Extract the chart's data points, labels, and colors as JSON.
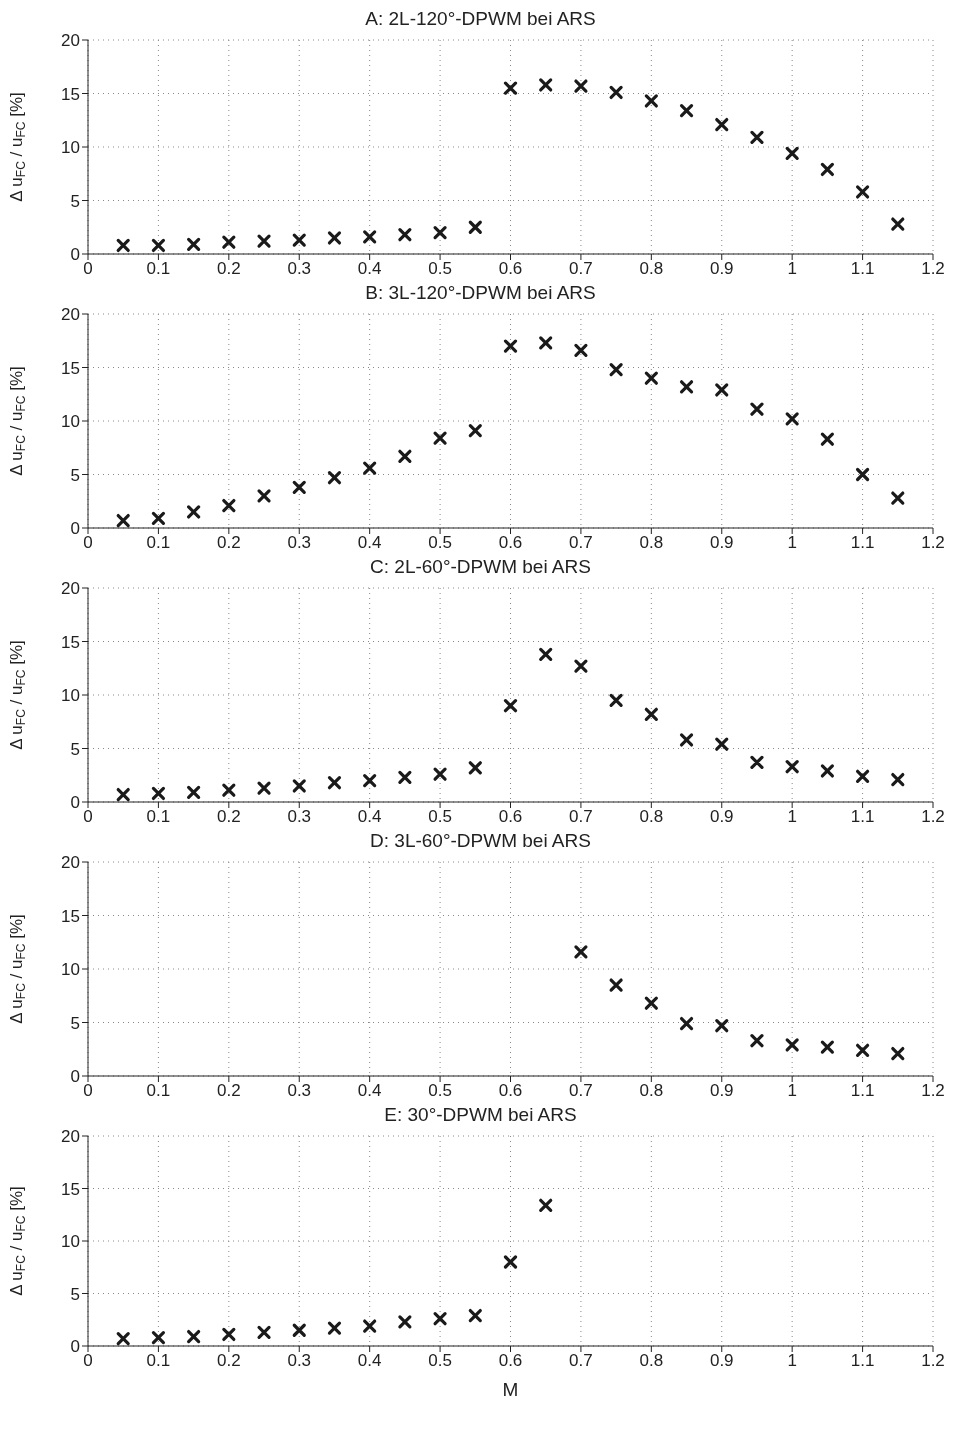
{
  "chart_data": [
    {
      "type": "scatter",
      "title": "A: 2L-120°-DPWM bei ARS",
      "ylabel": "Δ u$_{FC}$ / u$_{FC}$ [%]",
      "color": "#1a1a1a",
      "marker": "cross",
      "grid": true,
      "xlim": [
        0,
        1.2
      ],
      "xticks": [
        0,
        0.1,
        0.2,
        0.3,
        0.4,
        0.5,
        0.6,
        0.7,
        0.8,
        0.9,
        1,
        1.1,
        1.2
      ],
      "ylim": [
        0,
        20
      ],
      "yticks": [
        0,
        5,
        10,
        15,
        20
      ],
      "x": [
        0.05,
        0.1,
        0.15,
        0.2,
        0.25,
        0.3,
        0.35,
        0.4,
        0.45,
        0.5,
        0.55,
        0.6,
        0.65,
        0.7,
        0.75,
        0.8,
        0.85,
        0.9,
        0.95,
        1,
        1.05,
        1.1,
        1.15
      ],
      "values": [
        0.8,
        0.8,
        0.9,
        1.1,
        1.2,
        1.3,
        1.5,
        1.6,
        1.8,
        2.0,
        2.5,
        15.5,
        15.8,
        15.7,
        15.1,
        14.3,
        13.4,
        12.1,
        10.9,
        9.4,
        7.9,
        5.8,
        2.8
      ]
    },
    {
      "type": "scatter",
      "title": "B: 3L-120°-DPWM bei ARS",
      "ylabel": "Δ u$_{FC}$ / u$_{FC}$ [%]",
      "color": "#1a1a1a",
      "marker": "cross",
      "grid": true,
      "xlim": [
        0,
        1.2
      ],
      "xticks": [
        0,
        0.1,
        0.2,
        0.3,
        0.4,
        0.5,
        0.6,
        0.7,
        0.8,
        0.9,
        1,
        1.1,
        1.2
      ],
      "ylim": [
        0,
        20
      ],
      "yticks": [
        0,
        5,
        10,
        15,
        20
      ],
      "x": [
        0.05,
        0.1,
        0.15,
        0.2,
        0.25,
        0.3,
        0.35,
        0.4,
        0.45,
        0.5,
        0.55,
        0.6,
        0.65,
        0.7,
        0.75,
        0.8,
        0.85,
        0.9,
        0.95,
        1,
        1.05,
        1.1,
        1.15
      ],
      "values": [
        0.7,
        0.9,
        1.5,
        2.1,
        3.0,
        3.8,
        4.7,
        5.6,
        6.7,
        8.4,
        9.1,
        17.0,
        17.3,
        16.6,
        14.8,
        14.0,
        13.2,
        12.9,
        11.1,
        10.2,
        8.3,
        5.0,
        2.8
      ]
    },
    {
      "type": "scatter",
      "title": "C: 2L-60°-DPWM bei ARS",
      "ylabel": "Δ u$_{FC}$ / u$_{FC}$ [%]",
      "color": "#1a1a1a",
      "marker": "cross",
      "grid": true,
      "xlim": [
        0,
        1.2
      ],
      "xticks": [
        0,
        0.1,
        0.2,
        0.3,
        0.4,
        0.5,
        0.6,
        0.7,
        0.8,
        0.9,
        1,
        1.1,
        1.2
      ],
      "ylim": [
        0,
        20
      ],
      "yticks": [
        0,
        5,
        10,
        15,
        20
      ],
      "x": [
        0.05,
        0.1,
        0.15,
        0.2,
        0.25,
        0.3,
        0.35,
        0.4,
        0.45,
        0.5,
        0.55,
        0.6,
        0.65,
        0.7,
        0.75,
        0.8,
        0.85,
        0.9,
        0.95,
        1,
        1.05,
        1.1,
        1.15
      ],
      "values": [
        0.7,
        0.8,
        0.9,
        1.1,
        1.3,
        1.5,
        1.8,
        2.0,
        2.3,
        2.6,
        3.2,
        9.0,
        13.8,
        12.7,
        9.5,
        8.2,
        5.8,
        5.4,
        3.7,
        3.3,
        2.9,
        2.4,
        2.1
      ]
    },
    {
      "type": "scatter",
      "title": "D: 3L-60°-DPWM bei ARS",
      "ylabel": "Δ u$_{FC}$ / u$_{FC}$ [%]",
      "color": "#1a1a1a",
      "marker": "cross",
      "grid": true,
      "xlim": [
        0,
        1.2
      ],
      "xticks": [
        0,
        0.1,
        0.2,
        0.3,
        0.4,
        0.5,
        0.6,
        0.7,
        0.8,
        0.9,
        1,
        1.1,
        1.2
      ],
      "ylim": [
        0,
        20
      ],
      "yticks": [
        0,
        5,
        10,
        15,
        20
      ],
      "x": [
        0.7,
        0.75,
        0.8,
        0.85,
        0.9,
        0.95,
        1,
        1.05,
        1.1,
        1.15
      ],
      "values": [
        11.6,
        8.5,
        6.8,
        4.9,
        4.7,
        3.3,
        2.9,
        2.7,
        2.4,
        2.1
      ]
    },
    {
      "type": "scatter",
      "title": "E: 30°-DPWM bei ARS",
      "xlabel": "M",
      "ylabel": "Δ u$_{FC}$ / u$_{FC}$ [%]",
      "color": "#1a1a1a",
      "marker": "cross",
      "grid": true,
      "xlim": [
        0,
        1.2
      ],
      "xticks": [
        0,
        0.1,
        0.2,
        0.3,
        0.4,
        0.5,
        0.6,
        0.7,
        0.8,
        0.9,
        1,
        1.1,
        1.2
      ],
      "ylim": [
        0,
        20
      ],
      "yticks": [
        0,
        5,
        10,
        15,
        20
      ],
      "x": [
        0.05,
        0.1,
        0.15,
        0.2,
        0.25,
        0.3,
        0.35,
        0.4,
        0.45,
        0.5,
        0.55,
        0.6,
        0.65
      ],
      "values": [
        0.7,
        0.8,
        0.9,
        1.1,
        1.3,
        1.5,
        1.7,
        1.9,
        2.3,
        2.6,
        2.9,
        8.0,
        13.4
      ]
    }
  ]
}
